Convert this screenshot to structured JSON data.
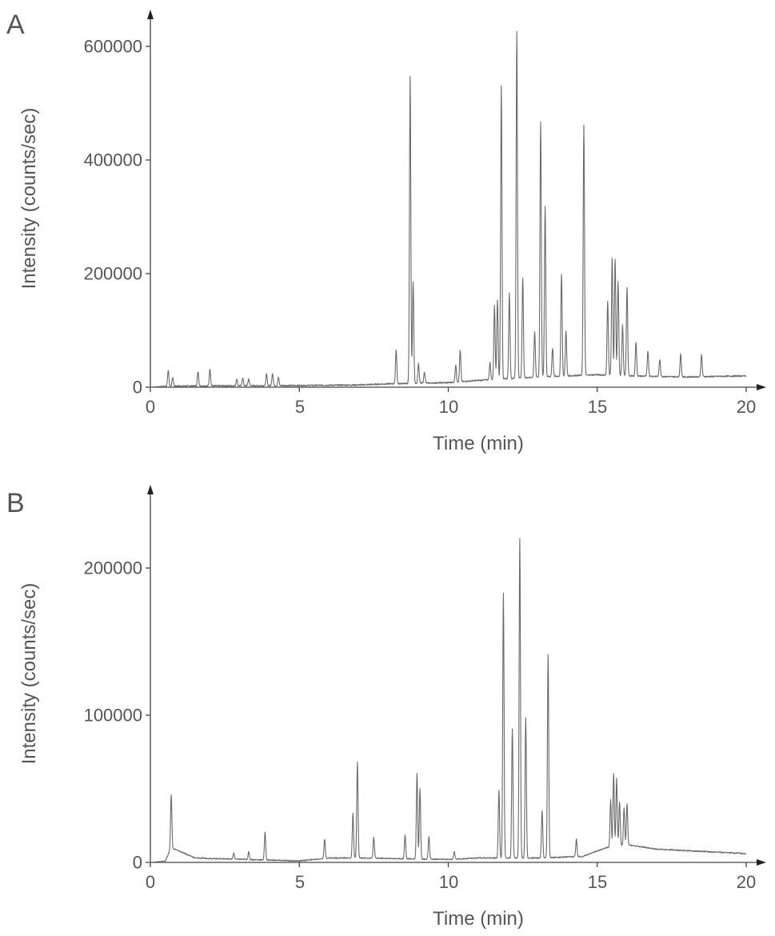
{
  "chart_data": [
    {
      "type": "line",
      "panel_label": "A",
      "xlabel": "Time (min)",
      "ylabel": "Intensity (counts/sec)",
      "xlim": [
        0,
        20.3
      ],
      "ylim": [
        0,
        640000
      ],
      "xticks": [
        0,
        5,
        10,
        15,
        20
      ],
      "yticks": [
        0,
        200000,
        400000,
        600000
      ],
      "grid": false,
      "series": [
        {
          "line_color": "#6a6a6a",
          "baseline": [
            [
              0.0,
              0
            ],
            [
              0.5,
              2000
            ],
            [
              5.0,
              3000
            ],
            [
              7.0,
              4000
            ],
            [
              8.0,
              6000
            ],
            [
              10.0,
              8000
            ],
            [
              11.0,
              12000
            ],
            [
              13.0,
              18000
            ],
            [
              15.0,
              22000
            ],
            [
              16.0,
              20000
            ],
            [
              18.0,
              18000
            ],
            [
              20.0,
              20000
            ]
          ],
          "peaks": [
            [
              0.6,
              28000
            ],
            [
              0.75,
              15000
            ],
            [
              1.6,
              25000
            ],
            [
              2.0,
              30000
            ],
            [
              2.9,
              12000
            ],
            [
              3.1,
              14000
            ],
            [
              3.3,
              12000
            ],
            [
              3.9,
              20000
            ],
            [
              4.1,
              22000
            ],
            [
              4.3,
              14000
            ],
            [
              8.25,
              60000
            ],
            [
              8.72,
              540000
            ],
            [
              8.82,
              180000
            ],
            [
              9.0,
              35000
            ],
            [
              9.2,
              20000
            ],
            [
              10.25,
              30000
            ],
            [
              10.4,
              55000
            ],
            [
              11.4,
              30000
            ],
            [
              11.55,
              130000
            ],
            [
              11.65,
              140000
            ],
            [
              11.78,
              515000
            ],
            [
              12.05,
              150000
            ],
            [
              12.3,
              610000
            ],
            [
              12.5,
              175000
            ],
            [
              12.9,
              80000
            ],
            [
              13.1,
              450000
            ],
            [
              13.25,
              300000
            ],
            [
              13.5,
              50000
            ],
            [
              13.8,
              180000
            ],
            [
              13.95,
              80000
            ],
            [
              14.55,
              440000
            ],
            [
              15.35,
              130000
            ],
            [
              15.5,
              205000
            ],
            [
              15.6,
              205000
            ],
            [
              15.7,
              165000
            ],
            [
              15.85,
              90000
            ],
            [
              16.0,
              155000
            ],
            [
              16.3,
              60000
            ],
            [
              16.7,
              45000
            ],
            [
              17.1,
              30000
            ],
            [
              17.8,
              40000
            ],
            [
              18.5,
              38000
            ]
          ]
        }
      ]
    },
    {
      "type": "line",
      "panel_label": "B",
      "xlabel": "Time (min)",
      "ylabel": "Intensity (counts/sec)",
      "xlim": [
        0,
        20.3
      ],
      "ylim": [
        0,
        250000
      ],
      "xticks": [
        0,
        5,
        10,
        15,
        20
      ],
      "yticks": [
        0,
        100000,
        200000
      ],
      "grid": false,
      "series": [
        {
          "line_color": "#6a6a6a",
          "baseline": [
            [
              0.0,
              0
            ],
            [
              0.5,
              1000
            ],
            [
              0.7,
              10000
            ],
            [
              1.5,
              3000
            ],
            [
              5.0,
              1000
            ],
            [
              6.0,
              3000
            ],
            [
              7.0,
              3000
            ],
            [
              10.0,
              2000
            ],
            [
              11.0,
              3000
            ],
            [
              13.0,
              3000
            ],
            [
              14.5,
              4000
            ],
            [
              15.3,
              10000
            ],
            [
              16.0,
              12000
            ],
            [
              17.0,
              9000
            ],
            [
              20.0,
              6000
            ]
          ],
          "peaks": [
            [
              0.7,
              36000
            ],
            [
              2.8,
              4000
            ],
            [
              3.3,
              5000
            ],
            [
              3.85,
              19000
            ],
            [
              5.85,
              13000
            ],
            [
              6.8,
              30000
            ],
            [
              6.95,
              65000
            ],
            [
              7.5,
              14000
            ],
            [
              8.55,
              16000
            ],
            [
              8.95,
              58000
            ],
            [
              9.05,
              48000
            ],
            [
              9.35,
              15000
            ],
            [
              10.2,
              5000
            ],
            [
              11.7,
              46000
            ],
            [
              11.85,
              180000
            ],
            [
              12.15,
              88000
            ],
            [
              12.4,
              217000
            ],
            [
              12.6,
              95000
            ],
            [
              13.15,
              32000
            ],
            [
              13.35,
              138000
            ],
            [
              14.3,
              12000
            ],
            [
              15.45,
              32000
            ],
            [
              15.55,
              50000
            ],
            [
              15.65,
              46000
            ],
            [
              15.75,
              30000
            ],
            [
              15.9,
              25000
            ],
            [
              16.0,
              28000
            ]
          ]
        }
      ]
    }
  ]
}
